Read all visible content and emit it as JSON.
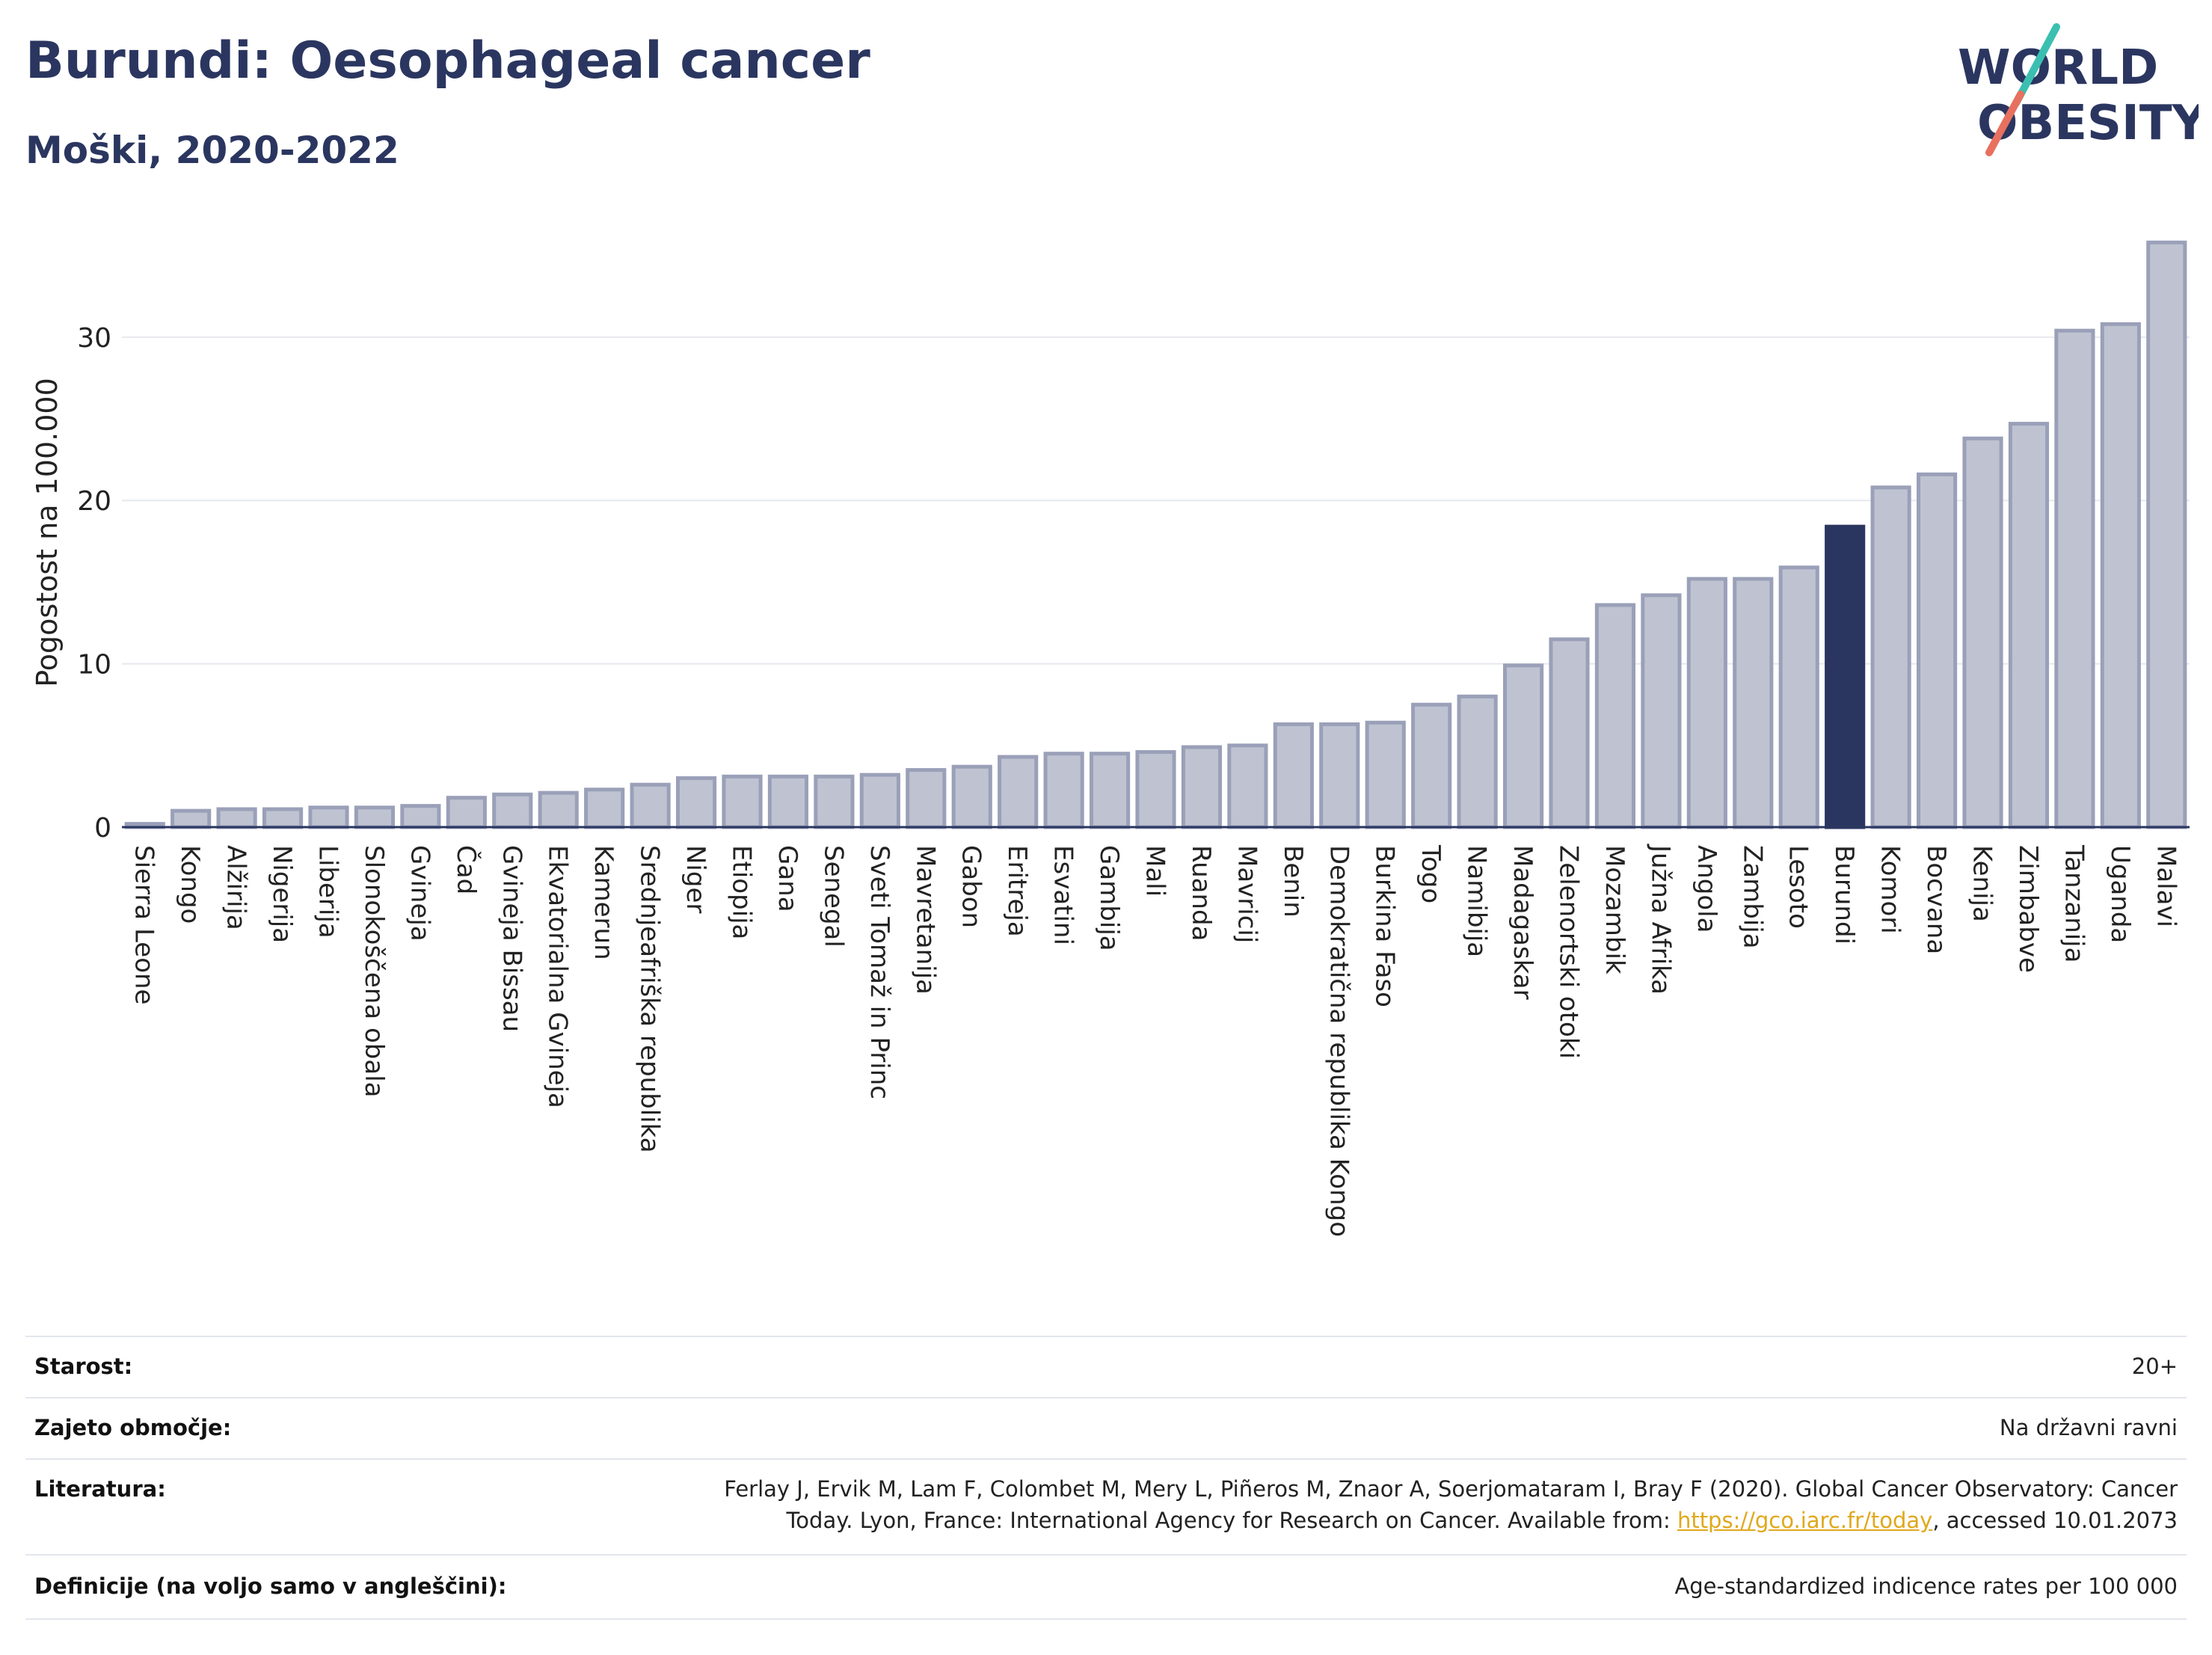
{
  "header": {
    "title": "Burundi: Oesophageal cancer",
    "subtitle": "Moški, 2020-2022"
  },
  "logo": {
    "line1": "WORLD",
    "line2": "OBESITY",
    "color": "#2b3660",
    "accent_teal": "#3bbfb0",
    "accent_red": "#e8705f"
  },
  "colors": {
    "bar_fill": "#bfc3d1",
    "bar_stroke": "#9aa0b8",
    "highlight": "#2b3660",
    "grid": "#e6e8ef",
    "axis": "#2b3660"
  },
  "chart_data": {
    "type": "bar",
    "title": "Burundi: Oesophageal cancer",
    "subtitle": "Moški, 2020-2022",
    "ylabel": "Pogostost na 100.000",
    "xlabel": "",
    "ylim": [
      0,
      37
    ],
    "yticks": [
      0,
      10,
      20,
      30
    ],
    "grid": true,
    "highlight": "Burundi",
    "categories": [
      "Sierra Leone",
      "Kongo",
      "Alžirija",
      "Nigerija",
      "Liberija",
      "Slonokoščena obala",
      "Gvineja",
      "Čad",
      "Gvineja Bissau",
      "Ekvatorialna Gvineja",
      "Kamerun",
      "Srednjeafriška republika",
      "Niger",
      "Etiopija",
      "Gana",
      "Senegal",
      "Sveti Tomaž in Princ",
      "Mavretanija",
      "Gabon",
      "Eritreja",
      "Esvatini",
      "Gambija",
      "Mali",
      "Ruanda",
      "Mavricij",
      "Benin",
      "Demokratična republika Kongo",
      "Burkina Faso",
      "Togo",
      "Namibija",
      "Madagaskar",
      "Zelenortski otoki",
      "Mozambik",
      "Južna Afrika",
      "Angola",
      "Zambija",
      "Lesoto",
      "Burundi",
      "Komori",
      "Bocvana",
      "Kenija",
      "Zimbabve",
      "Tanzanija",
      "Uganda",
      "Malavi"
    ],
    "values": [
      0.2,
      1.0,
      1.1,
      1.1,
      1.2,
      1.2,
      1.3,
      1.8,
      2.0,
      2.1,
      2.3,
      2.6,
      3.0,
      3.1,
      3.1,
      3.1,
      3.2,
      3.5,
      3.7,
      4.3,
      4.5,
      4.5,
      4.6,
      4.9,
      5.0,
      6.3,
      6.3,
      6.4,
      7.5,
      8.0,
      9.9,
      11.5,
      13.6,
      14.2,
      15.2,
      15.2,
      15.9,
      18.4,
      20.8,
      21.6,
      23.8,
      24.7,
      30.4,
      30.8,
      35.8
    ]
  },
  "meta": {
    "age_label": "Starost:",
    "age_value": "20+",
    "coverage_label": "Zajeto območje:",
    "coverage_value": "Na državni ravni",
    "reference_label": "Literatura:",
    "reference_line1": "Ferlay J, Ervik M, Lam F, Colombet M, Mery L, Piñeros M, Znaor A, Soerjomataram I, Bray F (2020). Global Cancer Observatory: Cancer",
    "reference_line2_pre": "Today. Lyon, France: International Agency for Research on Cancer. Available from: ",
    "reference_link": "https://gco.iarc.fr/today",
    "reference_line2_post": ", accessed 10.01.2073",
    "definitions_label": "Definicije (na voljo samo v angleščini):",
    "definitions_value": "Age-standardized indicence rates per 100 000"
  }
}
